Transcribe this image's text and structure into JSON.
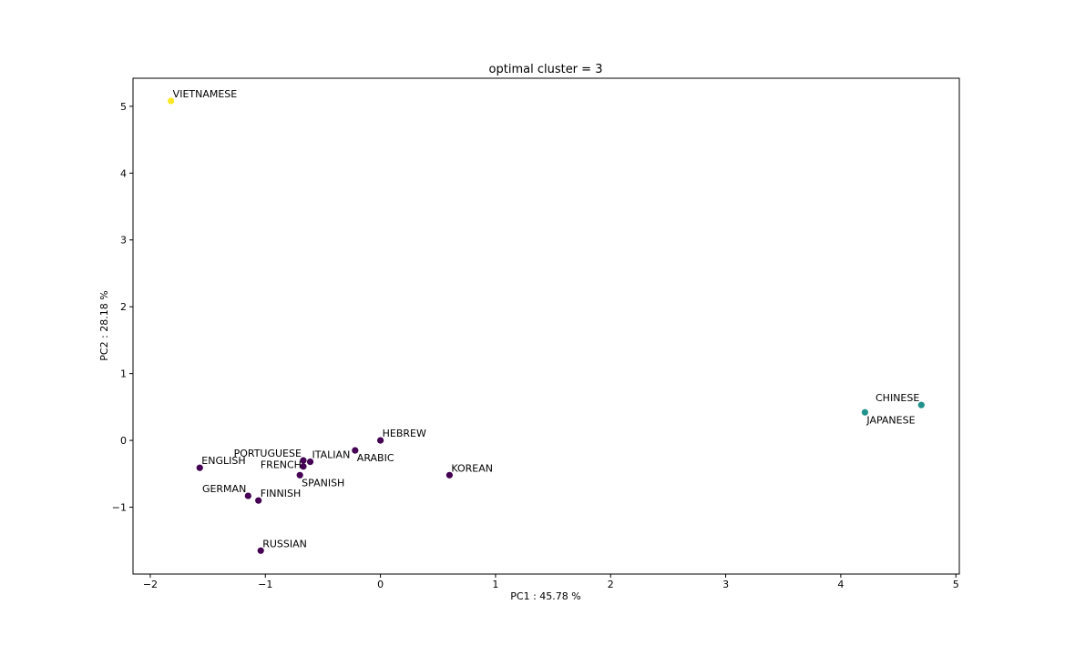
{
  "chart_data": {
    "type": "scatter",
    "title": "optimal cluster = 3",
    "xlabel": "PC1 : 45.78 %",
    "ylabel": "PC2 : 28.18 %",
    "xlim": [
      -2.15,
      5.03
    ],
    "ylim": [
      -2.0,
      5.42
    ],
    "xticks": [
      -2,
      -1,
      0,
      1,
      2,
      3,
      4,
      5
    ],
    "yticks": [
      -1,
      0,
      1,
      2,
      3,
      4,
      5
    ],
    "grid": false,
    "cluster_colors": [
      "#440154",
      "#21918c",
      "#fde725"
    ],
    "points": [
      {
        "label": "VIETNAMESE",
        "x": -1.82,
        "y": 5.08,
        "cluster": 2,
        "label_pos": "above-right"
      },
      {
        "label": "CHINESE",
        "x": 4.7,
        "y": 0.53,
        "cluster": 1,
        "label_pos": "above-left"
      },
      {
        "label": "JAPANESE",
        "x": 4.21,
        "y": 0.42,
        "cluster": 1,
        "label_pos": "below-right"
      },
      {
        "label": "HEBREW",
        "x": 0.0,
        "y": 0.0,
        "cluster": 0,
        "label_pos": "above-right"
      },
      {
        "label": "ARABIC",
        "x": -0.22,
        "y": -0.15,
        "cluster": 0,
        "label_pos": "below-right"
      },
      {
        "label": "PORTUGUESE",
        "x": -0.67,
        "y": -0.3,
        "cluster": 0,
        "label_pos": "above-left"
      },
      {
        "label": "ITALIAN",
        "x": -0.61,
        "y": -0.32,
        "cluster": 0,
        "label_pos": "above-right"
      },
      {
        "label": "FRENCH",
        "x": -0.67,
        "y": -0.39,
        "cluster": 0,
        "label_pos": "left"
      },
      {
        "label": "SPANISH",
        "x": -0.7,
        "y": -0.52,
        "cluster": 0,
        "label_pos": "below-right"
      },
      {
        "label": "ENGLISH",
        "x": -1.57,
        "y": -0.41,
        "cluster": 0,
        "label_pos": "above-right"
      },
      {
        "label": "KOREAN",
        "x": 0.6,
        "y": -0.52,
        "cluster": 0,
        "label_pos": "above-right"
      },
      {
        "label": "GERMAN",
        "x": -1.15,
        "y": -0.83,
        "cluster": 0,
        "label_pos": "above-left"
      },
      {
        "label": "FINNISH",
        "x": -1.06,
        "y": -0.9,
        "cluster": 0,
        "label_pos": "above-right"
      },
      {
        "label": "RUSSIAN",
        "x": -1.04,
        "y": -1.65,
        "cluster": 0,
        "label_pos": "above-right"
      }
    ]
  }
}
